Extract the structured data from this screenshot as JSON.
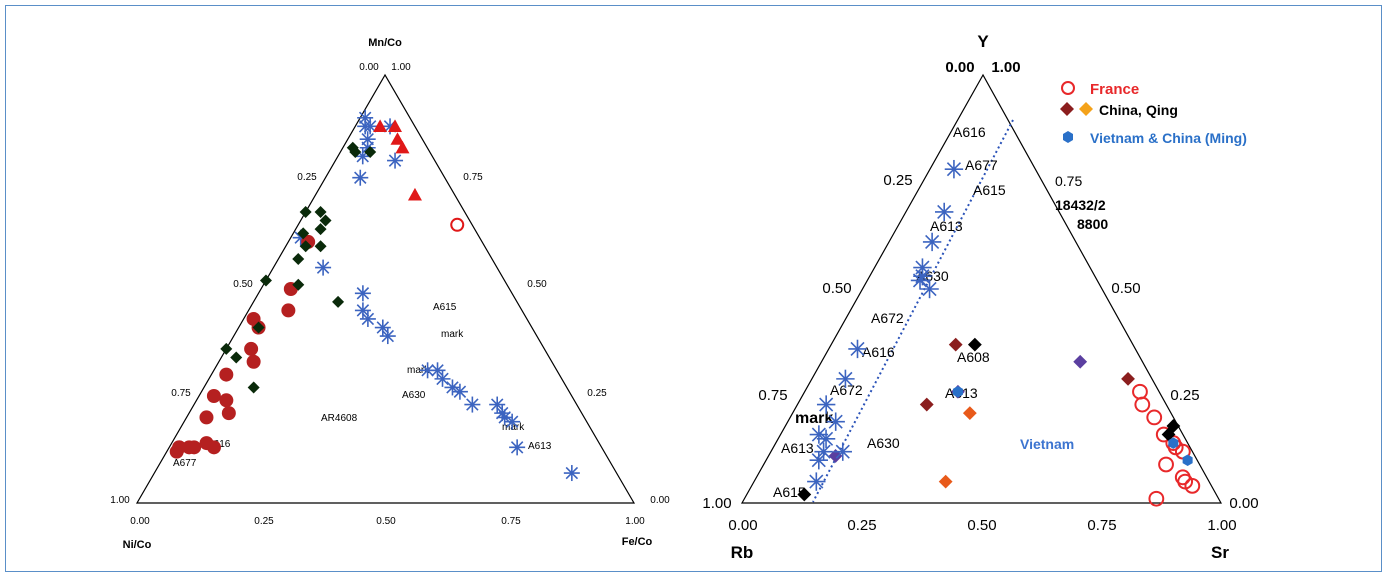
{
  "chart_data": [
    {
      "type": "scatter",
      "subtype": "ternary",
      "apex_labels": {
        "top": "Mn/Co",
        "left": "Ni/Co",
        "right": "Fe/Co"
      },
      "tick_labels": {
        "top": [
          "0.00",
          "1.00"
        ],
        "left_edge": [
          "0.25",
          "0.50",
          "0.75",
          "1.00"
        ],
        "right_edge": [
          "0.75",
          "0.50",
          "0.25",
          "0.00"
        ],
        "bottom": [
          "0.00",
          "0.25",
          "0.50",
          "0.75",
          "1.00"
        ]
      },
      "annotations": [
        "A615",
        "mark",
        "mark",
        "A630",
        "AR4608",
        "A616",
        "A677",
        "mark",
        "A613"
      ],
      "series": [
        {
          "marker": "asterisk",
          "color": "#3c64c0",
          "points": [
            [
              0.84,
              0.07
            ],
            [
              0.7,
              0.13
            ],
            [
              0.66,
              0.19
            ],
            [
              0.64,
              0.2
            ],
            [
              0.63,
              0.21
            ],
            [
              0.61,
              0.23
            ],
            [
              0.56,
              0.23
            ],
            [
              0.52,
              0.26
            ],
            [
              0.5,
              0.27
            ],
            [
              0.47,
              0.29
            ],
            [
              0.45,
              0.31
            ],
            [
              0.43,
              0.31
            ],
            [
              0.31,
              0.39
            ],
            [
              0.29,
              0.41
            ],
            [
              0.25,
              0.43
            ],
            [
              0.23,
              0.45
            ],
            [
              0.21,
              0.49
            ],
            [
              0.1,
              0.55
            ],
            [
              0.02,
              0.62
            ],
            [
              0.07,
              0.76
            ],
            [
              0.05,
              0.83
            ],
            [
              0.03,
              0.88
            ],
            [
              0.04,
              0.85
            ],
            [
              0.05,
              0.81
            ],
            [
              0.02,
              0.88
            ],
            [
              0.01,
              0.9
            ],
            [
              0.07,
              0.88
            ],
            [
              0.12,
              0.8
            ]
          ]
        },
        {
          "marker": "circle",
          "color": "#b52020",
          "points": [
            [
              0.03,
              0.25
            ],
            [
              0.07,
              0.14
            ],
            [
              0.09,
              0.13
            ],
            [
              0.05,
              0.13
            ],
            [
              0.04,
              0.13
            ],
            [
              0.02,
              0.12
            ],
            [
              0.02,
              0.13
            ],
            [
              0.02,
              0.13
            ],
            [
              0.04,
              0.2
            ],
            [
              0.08,
              0.21
            ],
            [
              0.06,
              0.24
            ],
            [
              0.03,
              0.3
            ],
            [
              0.07,
              0.33
            ],
            [
              0.05,
              0.36
            ],
            [
              0.04,
              0.41
            ],
            [
              0.08,
              0.45
            ],
            [
              0.02,
              0.43
            ],
            [
              0.06,
              0.5
            ],
            [
              0.04,
              0.61
            ]
          ]
        },
        {
          "marker": "diamond",
          "color": "#0a2a0a",
          "points": [
            [
              0.03,
              0.82
            ],
            [
              0.06,
              0.82
            ],
            [
              0.02,
              0.83
            ],
            [
              0.1,
              0.27
            ],
            [
              0.03,
              0.34
            ],
            [
              0.0,
              0.36
            ],
            [
              0.04,
              0.41
            ],
            [
              0.0,
              0.52
            ],
            [
              0.07,
              0.51
            ],
            [
              0.04,
              0.57
            ],
            [
              0.17,
              0.47
            ],
            [
              0.04,
              0.6
            ],
            [
              0.07,
              0.6
            ],
            [
              0.05,
              0.64
            ],
            [
              0.02,
              0.63
            ],
            [
              0.03,
              0.68
            ],
            [
              0.0,
              0.68
            ],
            [
              0.05,
              0.66
            ]
          ]
        },
        {
          "marker": "triangle",
          "color": "#e01818",
          "points": [
            [
              0.2,
              0.72
            ],
            [
              0.12,
              0.83
            ],
            [
              0.1,
              0.85
            ],
            [
              0.08,
              0.88
            ],
            [
              0.05,
              0.88
            ]
          ]
        },
        {
          "marker": "open-circle",
          "color": "#e01818",
          "points": [
            [
              0.32,
              0.65
            ]
          ]
        }
      ]
    },
    {
      "type": "scatter",
      "subtype": "ternary",
      "apex_labels": {
        "top": "Y",
        "left": "Rb",
        "right": "Sr"
      },
      "tick_labels": {
        "top": [
          "0.00",
          "1.00"
        ],
        "left_edge": [
          "0.25",
          "0.50",
          "0.75",
          "1.00"
        ],
        "right_edge": [
          "0.75",
          "0.50",
          "0.25",
          "0.00"
        ],
        "bottom": [
          "0.00",
          "0.25",
          "0.50",
          "0.75",
          "1.00"
        ]
      },
      "legend": [
        {
          "label": "France",
          "color": "#e8282a"
        },
        {
          "label": "China,",
          "label2": "Qing",
          "color": "#000000"
        },
        {
          "label": "Vietnam  &  China (Ming)",
          "color": "#2a70c8"
        }
      ],
      "annotations": [
        "A616",
        "A677",
        "A615",
        "0.75",
        "18432/2",
        "8800",
        "A613",
        "A630",
        "A672",
        "A616",
        "A608",
        "A613",
        "A672",
        "mark",
        "A613",
        "A630",
        "A615",
        "Vietnam"
      ],
      "series": [
        {
          "marker": "open-circle",
          "color": "#e8282a",
          "points": [
            [
              0.92,
              0.04
            ],
            [
              0.9,
              0.05
            ],
            [
              0.89,
              0.06
            ],
            [
              0.84,
              0.09
            ],
            [
              0.86,
              0.12
            ],
            [
              0.84,
              0.13
            ],
            [
              0.83,
              0.14
            ],
            [
              0.8,
              0.16
            ],
            [
              0.76,
              0.2
            ],
            [
              0.72,
              0.23
            ],
            [
              0.7,
              0.26
            ],
            [
              0.86,
              0.01
            ]
          ]
        },
        {
          "marker": "diamond",
          "color": "#8b1e1e",
          "points": [
            [
              0.66,
              0.29
            ],
            [
              0.26,
              0.37
            ],
            [
              0.27,
              0.23
            ]
          ]
        },
        {
          "marker": "diamond",
          "color": "#e85a1a",
          "points": [
            [
              0.37,
              0.21
            ],
            [
              0.4,
              0.05
            ]
          ]
        },
        {
          "marker": "diamond",
          "color": "#000000",
          "points": [
            [
              0.81,
              0.18
            ],
            [
              0.81,
              0.16
            ],
            [
              0.3,
              0.37
            ],
            [
              0.12,
              0.02
            ]
          ]
        },
        {
          "marker": "diamond",
          "color": "#5b3fa0",
          "points": [
            [
              0.54,
              0.33
            ],
            [
              0.32,
              0.26
            ],
            [
              0.14,
              0.11
            ]
          ]
        },
        {
          "marker": "hex",
          "color": "#2a70c8",
          "points": [
            [
              0.88,
              0.1
            ],
            [
              0.83,
              0.14
            ],
            [
              0.32,
              0.26
            ]
          ]
        },
        {
          "marker": "asterisk",
          "color": "#3c64c0",
          "points": [
            [
              0.13,
              0.05
            ],
            [
              0.11,
              0.1
            ],
            [
              0.11,
              0.12
            ],
            [
              0.1,
              0.15
            ],
            [
              0.08,
              0.16
            ],
            [
              0.15,
              0.12
            ],
            [
              0.1,
              0.19
            ],
            [
              0.06,
              0.23
            ],
            [
              0.07,
              0.29
            ],
            [
              0.06,
              0.36
            ],
            [
              0.14,
              0.5
            ],
            [
              0.11,
              0.52
            ],
            [
              0.11,
              0.53
            ],
            [
              0.1,
              0.55
            ],
            [
              0.09,
              0.61
            ],
            [
              0.08,
              0.68
            ],
            [
              0.05,
              0.78
            ]
          ]
        }
      ]
    }
  ]
}
